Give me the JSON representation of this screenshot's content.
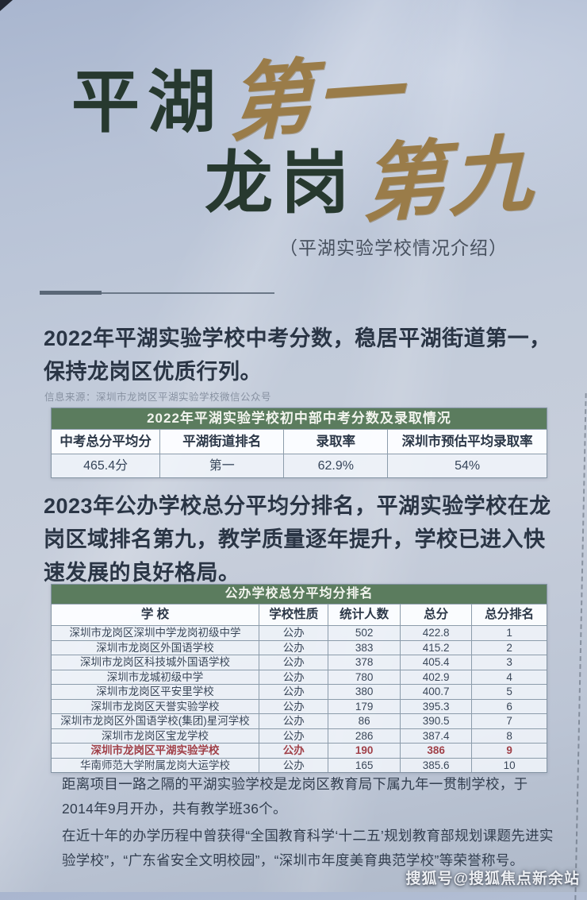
{
  "colors": {
    "table_header_green": "#5b7c5e",
    "title_green": "#27392f",
    "title_gold": "#9a7c49",
    "highlight_red": "#a04048"
  },
  "hero": {
    "line1_green": "平湖",
    "line1_gold": "第一",
    "line2_green": "龙岗",
    "line2_gold": "第九",
    "subtitle": "（平湖实验学校情况介绍）"
  },
  "section_2022": {
    "heading": "2022年平湖实验学校中考分数，稳居平湖街道第一，保持龙岗区优质行列。",
    "source": "信息来源：深圳市龙岗区平湖实验学校微信公众号",
    "table": {
      "title": "2022年平湖实验学校初中部中考分数及录取情况",
      "headers": [
        "中考总分平均分",
        "平湖街道排名",
        "录取率",
        "深圳市预估平均录取率"
      ],
      "values": [
        "465.4分",
        "第一",
        "62.9%",
        "54%"
      ]
    }
  },
  "section_2023": {
    "heading": "2023年公办学校总分平均分排名，平湖实验学校在龙岗区域排名第九，教学质量逐年提升，学校已进入快速发展的良好格局。",
    "table": {
      "title": "公办学校总分平均分排名",
      "headers": [
        "学 校",
        "学校性质",
        "统计人数",
        "总分",
        "总分排名"
      ],
      "rows": [
        {
          "school": "深圳市龙岗区深圳中学龙岗初级中学",
          "type": "公办",
          "count": "502",
          "score": "422.8",
          "rank": "1",
          "highlight": false
        },
        {
          "school": "深圳市龙岗区外国语学校",
          "type": "公办",
          "count": "383",
          "score": "415.2",
          "rank": "2",
          "highlight": false
        },
        {
          "school": "深圳市龙岗区科技城外国语学校",
          "type": "公办",
          "count": "378",
          "score": "405.4",
          "rank": "3",
          "highlight": false
        },
        {
          "school": "深圳市龙城初级中学",
          "type": "公办",
          "count": "780",
          "score": "402.9",
          "rank": "4",
          "highlight": false
        },
        {
          "school": "深圳市龙岗区平安里学校",
          "type": "公办",
          "count": "380",
          "score": "400.7",
          "rank": "5",
          "highlight": false
        },
        {
          "school": "深圳市龙岗区天誉实验学校",
          "type": "公办",
          "count": "179",
          "score": "395.3",
          "rank": "6",
          "highlight": false
        },
        {
          "school": "深圳市龙岗区外国语学校(集团)星河学校",
          "type": "公办",
          "count": "86",
          "score": "390.5",
          "rank": "7",
          "highlight": false
        },
        {
          "school": "深圳市龙岗区宝龙学校",
          "type": "公办",
          "count": "286",
          "score": "387.4",
          "rank": "8",
          "highlight": false
        },
        {
          "school": "深圳市龙岗区平湖实验学校",
          "type": "公办",
          "count": "190",
          "score": "386",
          "rank": "9",
          "highlight": true
        },
        {
          "school": "华南师范大学附属龙岗大运学校",
          "type": "公办",
          "count": "165",
          "score": "385.6",
          "rank": "10",
          "highlight": false
        }
      ]
    }
  },
  "footer": {
    "para1": "距离项目一路之隔的平湖实验学校是龙岗区教育局下属九年一贯制学校，于2014年9月开办，共有教学班36个。",
    "para2": "在近十年的办学历程中曾获得“全国教育科学‘十二五’规划教育部规划课题先进实验学校”，“广东省安全文明校园”，“深圳市年度美育典范学校”等荣誉称号。"
  },
  "watermark": "搜狐号@搜狐焦点新余站"
}
